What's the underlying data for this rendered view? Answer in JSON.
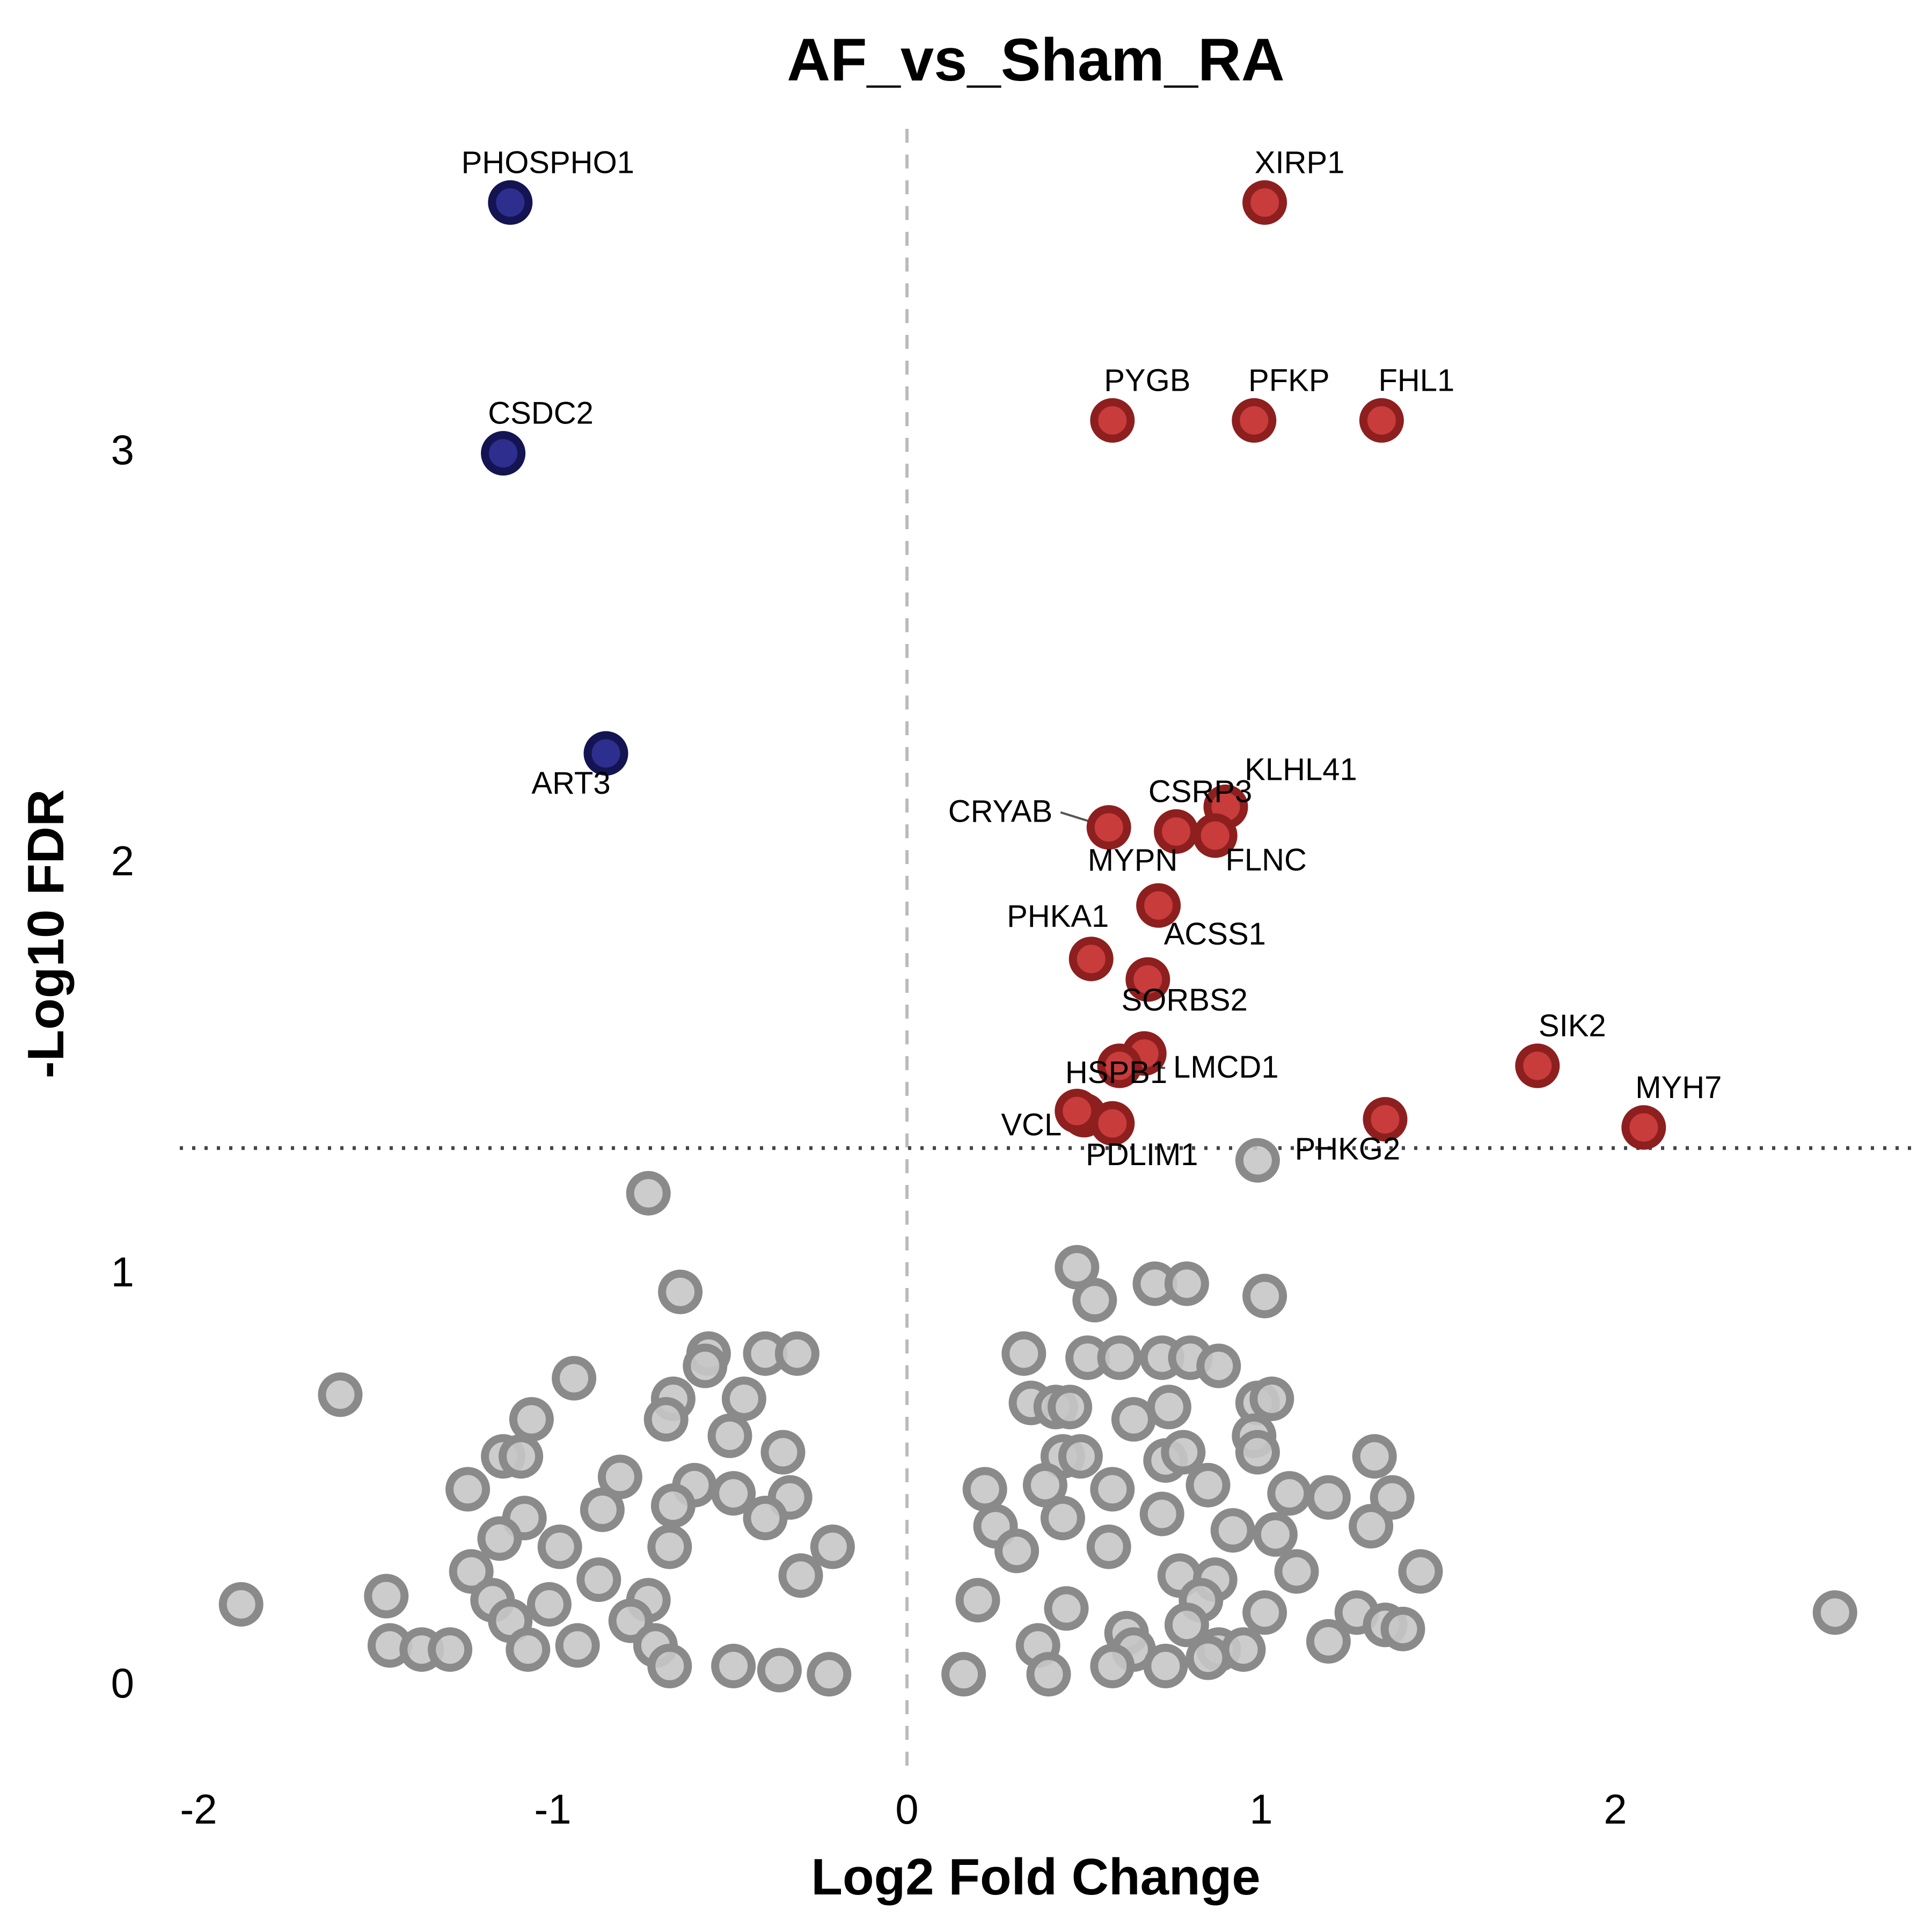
{
  "chart_data": {
    "type": "scatter",
    "title": "AF_vs_Sham_RA",
    "xlabel": "Log2 Fold Change",
    "ylabel": "-Log10 FDR",
    "xlim": [
      -2.1,
      2.85
    ],
    "ylim": [
      -0.2,
      3.8
    ],
    "x_ticks": [
      -2,
      -1,
      0,
      1,
      2
    ],
    "y_ticks": [
      0,
      1,
      2,
      3
    ],
    "vline_x": 0,
    "hline_y": 1.3,
    "grid": false,
    "legend": "none",
    "colors": {
      "up": "#c83c3c",
      "up_border": "#8e1f1f",
      "down": "#2e2e8f",
      "down_border": "#141452",
      "ns_fill": "#c6c6c6",
      "ns_border": "#8a8a8a",
      "threshold_line": "#444444",
      "zero_line": "#bbbbbb"
    },
    "up_points": [
      {
        "gene": "XIRP1",
        "x": 1.01,
        "y": 3.6
      },
      {
        "gene": "PYGB",
        "x": 0.58,
        "y": 3.07
      },
      {
        "gene": "PFKP",
        "x": 0.98,
        "y": 3.07
      },
      {
        "gene": "FHL1",
        "x": 1.34,
        "y": 3.07
      },
      {
        "gene": "KLHL41",
        "x": 0.9,
        "y": 2.13
      },
      {
        "gene": "CSRP3",
        "x": 0.76,
        "y": 2.07
      },
      {
        "gene": "CRYAB",
        "x": 0.57,
        "y": 2.08
      },
      {
        "gene": "FLNC",
        "x": 0.87,
        "y": 2.06
      },
      {
        "gene": "MYPN",
        "x": 0.71,
        "y": 1.89
      },
      {
        "gene": "PHKA1",
        "x": 0.52,
        "y": 1.76
      },
      {
        "gene": "ACSS1",
        "x": 0.68,
        "y": 1.71
      },
      {
        "gene": "SORBS2",
        "x": 0.67,
        "y": 1.53
      },
      {
        "gene": "LMCD1",
        "x": 0.6,
        "y": 1.5
      },
      {
        "gene": "SIK2",
        "x": 1.78,
        "y": 1.5
      },
      {
        "gene": "HSPB1",
        "x": 0.5,
        "y": 1.38
      },
      {
        "gene": "VCL",
        "x": 0.48,
        "y": 1.39
      },
      {
        "gene": "PDLIM1",
        "x": 0.58,
        "y": 1.36
      },
      {
        "gene": "PHKG2",
        "x": 1.35,
        "y": 1.37
      },
      {
        "gene": "MYH7",
        "x": 2.08,
        "y": 1.35
      }
    ],
    "down_points": [
      {
        "gene": "PHOSPHO1",
        "x": -1.12,
        "y": 3.6
      },
      {
        "gene": "CSDC2",
        "x": -1.14,
        "y": 2.99
      },
      {
        "gene": "ART3",
        "x": -0.85,
        "y": 2.26
      }
    ],
    "ns_points": [
      [
        0.99,
        1.27
      ],
      [
        -0.73,
        1.19
      ],
      [
        0.48,
        1.01
      ],
      [
        0.53,
        0.93
      ],
      [
        0.7,
        0.97
      ],
      [
        0.79,
        0.97
      ],
      [
        1.01,
        0.94
      ],
      [
        -0.64,
        0.95
      ],
      [
        -0.56,
        0.8
      ],
      [
        -0.57,
        0.77
      ],
      [
        -0.4,
        0.8
      ],
      [
        -0.31,
        0.8
      ],
      [
        0.33,
        0.8
      ],
      [
        0.51,
        0.79
      ],
      [
        0.6,
        0.79
      ],
      [
        0.72,
        0.79
      ],
      [
        0.8,
        0.79
      ],
      [
        0.88,
        0.77
      ],
      [
        -0.94,
        0.74
      ],
      [
        -1.6,
        0.7
      ],
      [
        -0.66,
        0.69
      ],
      [
        -0.46,
        0.69
      ],
      [
        0.35,
        0.68
      ],
      [
        0.42,
        0.67
      ],
      [
        0.46,
        0.67
      ],
      [
        0.74,
        0.67
      ],
      [
        0.99,
        0.68
      ],
      [
        1.03,
        0.69
      ],
      [
        -1.06,
        0.64
      ],
      [
        -0.68,
        0.64
      ],
      [
        0.64,
        0.64
      ],
      [
        -0.5,
        0.6
      ],
      [
        0.98,
        0.6
      ],
      [
        -1.14,
        0.55
      ],
      [
        -1.09,
        0.55
      ],
      [
        -0.35,
        0.56
      ],
      [
        0.44,
        0.55
      ],
      [
        0.49,
        0.55
      ],
      [
        0.73,
        0.54
      ],
      [
        0.78,
        0.56
      ],
      [
        0.99,
        0.56
      ],
      [
        1.32,
        0.55
      ],
      [
        -1.24,
        0.47
      ],
      [
        -0.81,
        0.5
      ],
      [
        -0.6,
        0.48
      ],
      [
        -0.49,
        0.46
      ],
      [
        -0.33,
        0.45
      ],
      [
        0.22,
        0.47
      ],
      [
        0.39,
        0.48
      ],
      [
        0.58,
        0.47
      ],
      [
        0.85,
        0.48
      ],
      [
        1.08,
        0.46
      ],
      [
        1.19,
        0.45
      ],
      [
        1.37,
        0.45
      ],
      [
        -1.08,
        0.4
      ],
      [
        -0.86,
        0.42
      ],
      [
        -0.66,
        0.43
      ],
      [
        -0.4,
        0.4
      ],
      [
        0.25,
        0.38
      ],
      [
        0.44,
        0.4
      ],
      [
        0.72,
        0.41
      ],
      [
        0.92,
        0.37
      ],
      [
        1.04,
        0.36
      ],
      [
        1.31,
        0.38
      ],
      [
        -1.15,
        0.35
      ],
      [
        -0.98,
        0.33
      ],
      [
        -0.67,
        0.33
      ],
      [
        -0.21,
        0.33
      ],
      [
        0.31,
        0.32
      ],
      [
        0.57,
        0.33
      ],
      [
        1.1,
        0.27
      ],
      [
        1.45,
        0.27
      ],
      [
        -1.23,
        0.27
      ],
      [
        -0.87,
        0.25
      ],
      [
        -0.3,
        0.26
      ],
      [
        0.77,
        0.26
      ],
      [
        0.87,
        0.25
      ],
      [
        -1.88,
        0.19
      ],
      [
        -1.47,
        0.21
      ],
      [
        -1.17,
        0.2
      ],
      [
        -1.01,
        0.19
      ],
      [
        -0.73,
        0.2
      ],
      [
        0.2,
        0.2
      ],
      [
        0.45,
        0.18
      ],
      [
        0.83,
        0.2
      ],
      [
        1.01,
        0.17
      ],
      [
        1.27,
        0.17
      ],
      [
        2.62,
        0.17
      ],
      [
        -1.12,
        0.15
      ],
      [
        -0.78,
        0.15
      ],
      [
        0.62,
        0.12
      ],
      [
        0.79,
        0.14
      ],
      [
        1.35,
        0.14
      ],
      [
        1.4,
        0.13
      ],
      [
        -1.46,
        0.09
      ],
      [
        -1.37,
        0.08
      ],
      [
        -1.29,
        0.08
      ],
      [
        -1.07,
        0.08
      ],
      [
        -0.93,
        0.09
      ],
      [
        -0.71,
        0.09
      ],
      [
        0.37,
        0.09
      ],
      [
        0.64,
        0.08
      ],
      [
        0.88,
        0.08
      ],
      [
        0.95,
        0.08
      ],
      [
        1.19,
        0.1
      ],
      [
        -0.67,
        0.04
      ],
      [
        -0.49,
        0.04
      ],
      [
        -0.36,
        0.03
      ],
      [
        -0.22,
        0.02
      ],
      [
        0.16,
        0.02
      ],
      [
        0.4,
        0.02
      ],
      [
        0.58,
        0.04
      ],
      [
        0.73,
        0.04
      ],
      [
        0.85,
        0.06
      ]
    ]
  }
}
